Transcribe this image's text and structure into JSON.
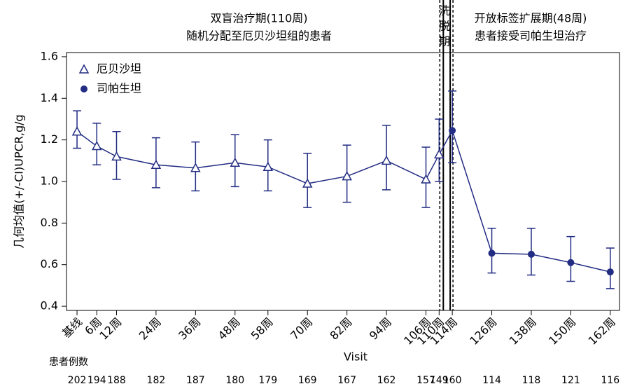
{
  "chart_data": {
    "type": "line",
    "annotations": {
      "double_blind": [
        "双盲治疗期(110周)",
        "随机分配至厄贝沙坦组的患者"
      ],
      "washout": [
        "洗",
        "脱",
        "期"
      ],
      "open_label": [
        "开放标签扩展期(48周)",
        "患者接受司帕生坦治疗"
      ]
    },
    "ylabel": "几何均值(+/-CI)UPCR,g/g",
    "xlabel": "Visit",
    "xlim": [
      -3.2,
      164.8
    ],
    "ylim": [
      0.38,
      1.62
    ],
    "yticks": [
      0.4,
      0.6,
      0.8,
      {
        "value": 1,
        "label": "1.0"
      },
      1.2,
      1.4,
      1.6
    ],
    "xticks": [
      {
        "value": 0,
        "label": "基线"
      },
      {
        "value": 6,
        "label": "6周"
      },
      {
        "value": 12,
        "label": "12周"
      },
      {
        "value": 24,
        "label": "24周"
      },
      {
        "value": 36,
        "label": "36周"
      },
      {
        "value": 48,
        "label": "48周"
      },
      {
        "value": 58,
        "label": "58周"
      },
      {
        "value": 70,
        "label": "70周"
      },
      {
        "value": 82,
        "label": "82周"
      },
      {
        "value": 94,
        "label": "94周"
      },
      {
        "value": 106,
        "label": "106周"
      },
      {
        "value": 110,
        "label": "110周"
      },
      {
        "value": 114,
        "label": "114周"
      },
      {
        "value": 126,
        "label": "126周"
      },
      {
        "value": 138,
        "label": "138周"
      },
      {
        "value": 150,
        "label": "150周"
      },
      {
        "value": 162,
        "label": "162周"
      }
    ],
    "patients_label": "患者例数",
    "patients": [
      202,
      194,
      188,
      182,
      187,
      180,
      179,
      169,
      167,
      162,
      157,
      149,
      160,
      114,
      118,
      121,
      116
    ],
    "series": [
      {
        "name": "厄贝沙坦",
        "color": "#222c83",
        "marker": "triangle",
        "x": [
          0,
          6,
          12,
          24,
          36,
          48,
          58,
          70,
          82,
          94,
          106,
          110
        ],
        "values": [
          1.24,
          1.17,
          1.12,
          1.08,
          1.065,
          1.09,
          1.07,
          0.99,
          1.025,
          1.1,
          1.01,
          1.13
        ],
        "lower": [
          1.16,
          1.08,
          1.01,
          0.97,
          0.955,
          0.975,
          0.955,
          0.875,
          0.9,
          0.96,
          0.875,
          1.0
        ],
        "upper": [
          1.34,
          1.28,
          1.24,
          1.21,
          1.19,
          1.225,
          1.2,
          1.135,
          1.175,
          1.27,
          1.165,
          1.3
        ]
      },
      {
        "name": "司帕生坦",
        "color": "#222c83",
        "marker": "circle",
        "x": [
          114,
          126,
          138,
          150,
          162
        ],
        "values": [
          1.245,
          0.655,
          0.65,
          0.61,
          0.565
        ],
        "lower": [
          1.09,
          0.56,
          0.55,
          0.52,
          0.485
        ],
        "upper": [
          1.435,
          0.775,
          0.775,
          0.735,
          0.68
        ]
      }
    ]
  }
}
